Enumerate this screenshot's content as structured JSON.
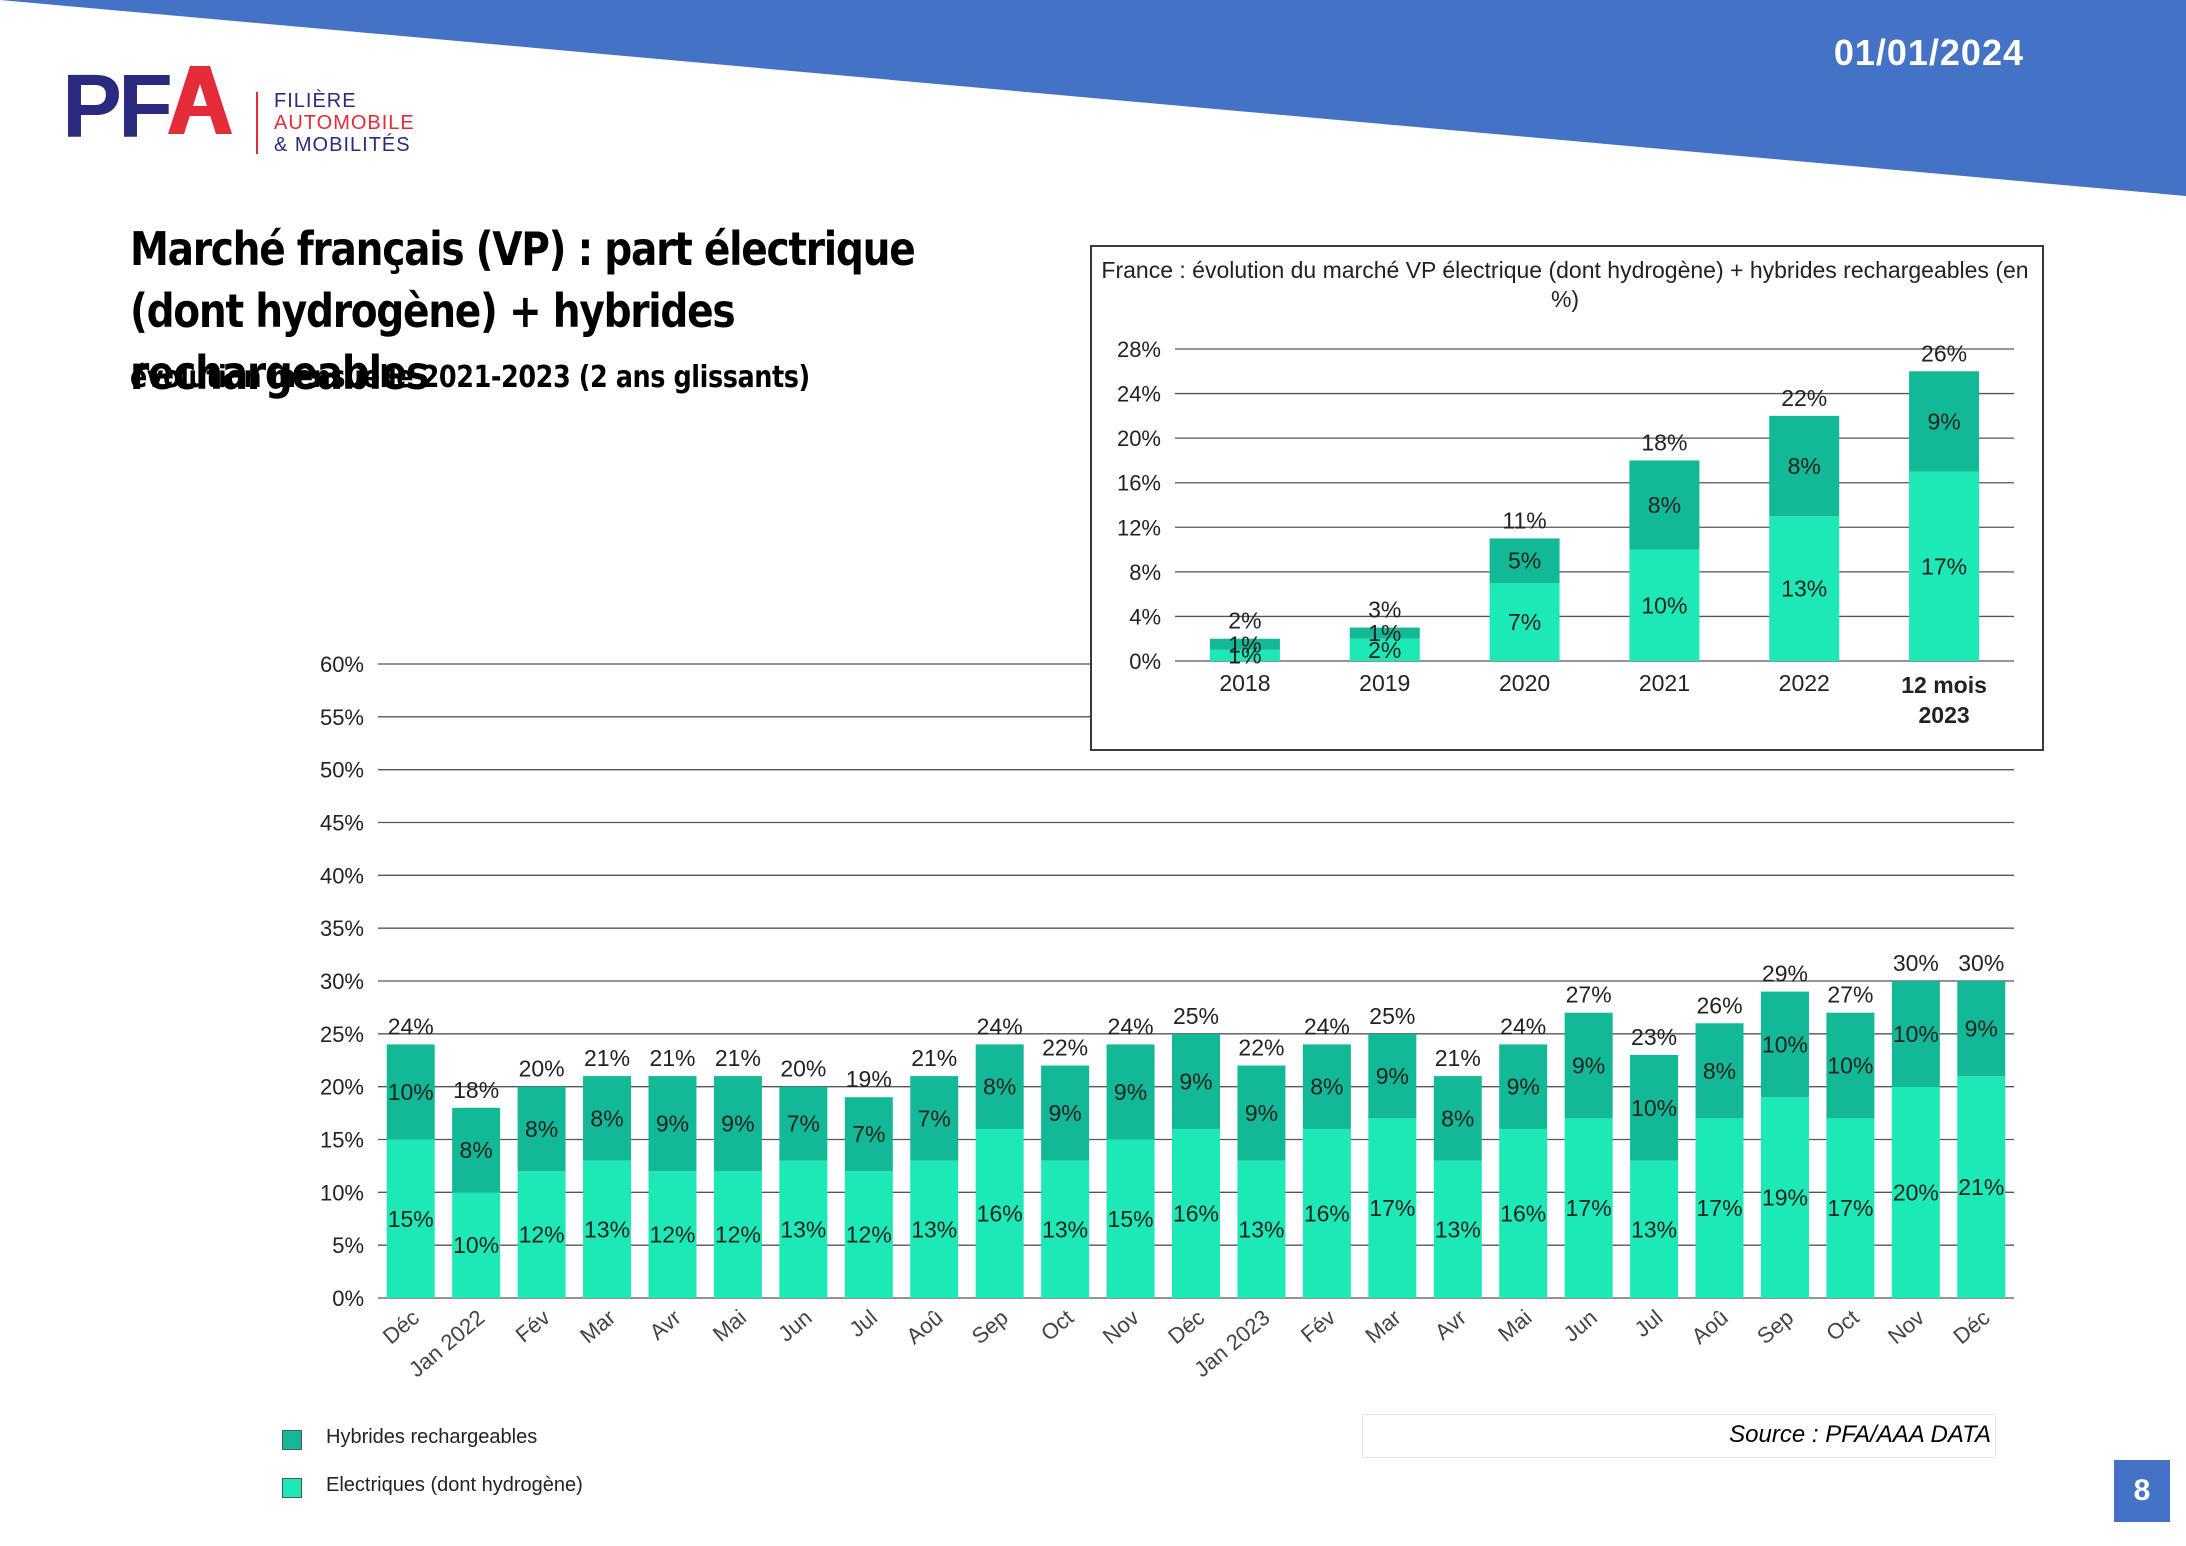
{
  "header": {
    "date": "01/01/2024",
    "logo": {
      "letters": "PFA",
      "lines": [
        "FILIÈRE",
        "AUTOMOBILE",
        "& MOBILITÉS"
      ]
    },
    "banner_color": "#4472c4"
  },
  "title": "Marché français (VP) : part électrique (dont hydrogène) + hybrides rechargeables",
  "subtitle": "évolution mensuelle 2021-2023 (2 ans glissants)",
  "legend": {
    "items": [
      {
        "label": "Hybrides rechargeables",
        "color": "#13b896"
      },
      {
        "label": "Electriques (dont hydrogène)",
        "color": "#1de9b6"
      }
    ]
  },
  "source": "Source : PFA/AAA DATA",
  "page_number": "8",
  "colors": {
    "hybrid": "#13b896",
    "electric": "#1de9b6",
    "grid": "#555555",
    "text": "#222222"
  },
  "chart_data": [
    {
      "type": "bar",
      "stacked": true,
      "categories": [
        "Déc",
        "Jan 2022",
        "Fév",
        "Mar",
        "Avr",
        "Mai",
        "Jun",
        "Jul",
        "Aoû",
        "Sep",
        "Oct",
        "Nov",
        "Déc",
        "Jan 2023",
        "Fév",
        "Mar",
        "Avr",
        "Mai",
        "Jun",
        "Jul",
        "Aoû",
        "Sep",
        "Oct",
        "Nov",
        "Déc"
      ],
      "series": [
        {
          "name": "Electriques (dont hydrogène)",
          "values": [
            15,
            10,
            12,
            13,
            12,
            12,
            13,
            12,
            13,
            16,
            13,
            15,
            16,
            13,
            16,
            17,
            13,
            16,
            17,
            13,
            17,
            19,
            17,
            20,
            21
          ],
          "labels": [
            "15%",
            "10%",
            "12%",
            "13%",
            "12%",
            "12%",
            "13%",
            "12%",
            "13%",
            "16%",
            "13%",
            "15%",
            "16%",
            "13%",
            "16%",
            "17%",
            "13%",
            "16%",
            "17%",
            "13%",
            "17%",
            "19%",
            "17%",
            "20%",
            "21%"
          ]
        },
        {
          "name": "Hybrides rechargeables",
          "values": [
            10,
            8,
            8,
            8,
            9,
            9,
            7,
            7,
            7,
            8,
            9,
            9,
            9,
            9,
            8,
            9,
            8,
            9,
            9,
            10,
            8,
            10,
            10,
            10,
            9
          ],
          "labels": [
            "10%",
            "8%",
            "8%",
            "8%",
            "9%",
            "9%",
            "7%",
            "7%",
            "7%",
            "8%",
            "9%",
            "9%",
            "9%",
            "9%",
            "8%",
            "9%",
            "8%",
            "9%",
            "9%",
            "10%",
            "8%",
            "10%",
            "10%",
            "10%",
            "9%"
          ]
        }
      ],
      "totals": [
        24,
        18,
        20,
        21,
        21,
        21,
        20,
        19,
        21,
        24,
        22,
        24,
        25,
        22,
        24,
        25,
        21,
        24,
        27,
        23,
        26,
        29,
        27,
        30,
        30
      ],
      "total_labels": [
        "24%",
        "18%",
        "20%",
        "21%",
        "21%",
        "21%",
        "20%",
        "19%",
        "21%",
        "24%",
        "22%",
        "24%",
        "25%",
        "22%",
        "24%",
        "25%",
        "21%",
        "24%",
        "27%",
        "23%",
        "26%",
        "29%",
        "27%",
        "30%",
        "30%"
      ],
      "ylim": [
        0,
        60
      ],
      "yticks": [
        "0%",
        "5%",
        "10%",
        "15%",
        "20%",
        "25%",
        "30%",
        "35%",
        "40%",
        "45%",
        "50%",
        "55%",
        "60%"
      ],
      "grid": true,
      "legend": "bottom-left"
    },
    {
      "type": "bar",
      "stacked": true,
      "title": "France : évolution du marché VP électrique (dont hydrogène) + hybrides rechargeables (en %)",
      "categories": [
        "2018",
        "2019",
        "2020",
        "2021",
        "2022",
        "12 mois 2023"
      ],
      "series": [
        {
          "name": "Electriques (dont hydrogène)",
          "values": [
            1,
            2,
            7,
            10,
            13,
            17
          ],
          "labels": [
            "1%",
            "2%",
            "7%",
            "10%",
            "13%",
            "17%"
          ]
        },
        {
          "name": "Hybrides rechargeables",
          "values": [
            1,
            1,
            5,
            8,
            8,
            9
          ],
          "labels": [
            "1%",
            "1%",
            "5%",
            "8%",
            "8%",
            "9%"
          ]
        }
      ],
      "totals": [
        2,
        3,
        11,
        18,
        22,
        26
      ],
      "total_labels": [
        "2%",
        "3%",
        "11%",
        "18%",
        "22%",
        "26%"
      ],
      "ylim": [
        0,
        28
      ],
      "yticks": [
        "0%",
        "4%",
        "8%",
        "12%",
        "16%",
        "20%",
        "24%",
        "28%"
      ],
      "grid": true
    }
  ]
}
